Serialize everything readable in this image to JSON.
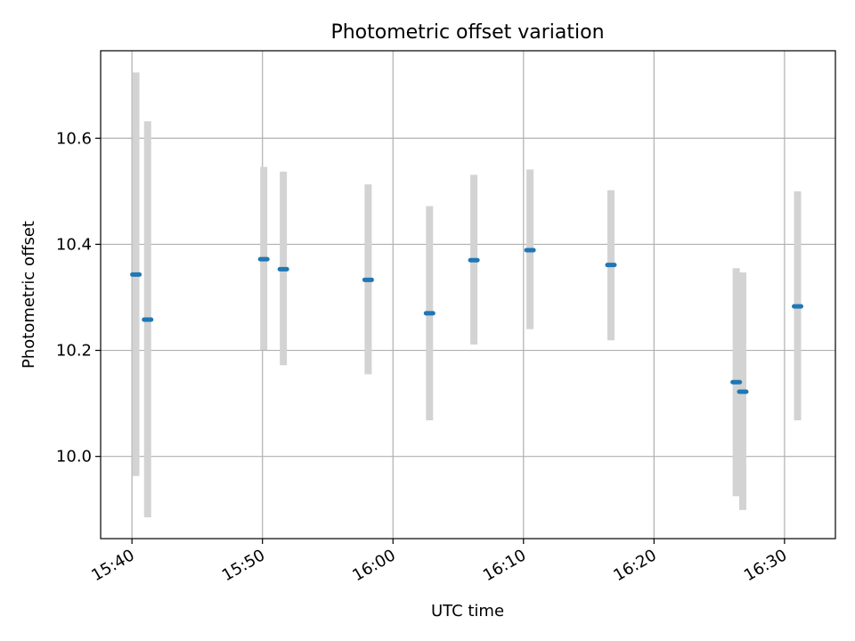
{
  "chart_data": {
    "type": "scatter",
    "title": "Photometric offset variation",
    "xlabel": "UTC time",
    "ylabel": "Photometric offset",
    "x_ticks": [
      "15:40",
      "15:50",
      "16:00",
      "16:10",
      "16:20",
      "16:30"
    ],
    "x_tick_minutes": [
      0,
      10,
      20,
      30,
      40,
      50
    ],
    "x_range_minutes": [
      -2.4,
      53.9
    ],
    "y_ticks": [
      "10.0",
      "10.2",
      "10.4",
      "10.6"
    ],
    "y_tick_values": [
      10.0,
      10.2,
      10.4,
      10.6
    ],
    "ylim": [
      9.845,
      10.765
    ],
    "grid": true,
    "colors": {
      "point": "#1f77b4",
      "errorbar": "#d3d3d3",
      "grid": "#b0b0b0"
    },
    "points": [
      {
        "time": "15:40:18",
        "x": 0.3,
        "y": 10.343,
        "err_low": 9.963,
        "err_high": 10.724
      },
      {
        "time": "15:41:12",
        "x": 1.2,
        "y": 10.258,
        "err_low": 9.885,
        "err_high": 10.632
      },
      {
        "time": "15:50:06",
        "x": 10.1,
        "y": 10.372,
        "err_low": 10.201,
        "err_high": 10.546
      },
      {
        "time": "15:51:36",
        "x": 11.6,
        "y": 10.353,
        "err_low": 10.172,
        "err_high": 10.537
      },
      {
        "time": "15:58:06",
        "x": 18.1,
        "y": 10.333,
        "err_low": 10.155,
        "err_high": 10.513
      },
      {
        "time": "16:02:48",
        "x": 22.8,
        "y": 10.27,
        "err_low": 10.068,
        "err_high": 10.472
      },
      {
        "time": "16:06:12",
        "x": 26.2,
        "y": 10.37,
        "err_low": 10.211,
        "err_high": 10.531
      },
      {
        "time": "16:10:30",
        "x": 30.5,
        "y": 10.389,
        "err_low": 10.24,
        "err_high": 10.541
      },
      {
        "time": "16:16:42",
        "x": 36.7,
        "y": 10.361,
        "err_low": 10.219,
        "err_high": 10.502
      },
      {
        "time": "16:26:18",
        "x": 46.3,
        "y": 10.14,
        "err_low": 9.925,
        "err_high": 10.355
      },
      {
        "time": "16:26:48",
        "x": 46.8,
        "y": 10.122,
        "err_low": 9.899,
        "err_high": 10.347
      },
      {
        "time": "16:31:00",
        "x": 51.0,
        "y": 10.283,
        "err_low": 10.068,
        "err_high": 10.5
      }
    ]
  }
}
